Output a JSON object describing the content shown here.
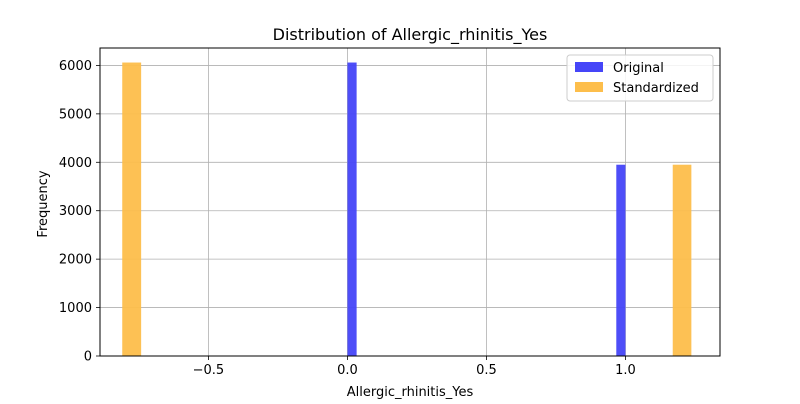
{
  "chart_data": {
    "type": "bar",
    "title": "Distribution of Allergic_rhinitis_Yes",
    "xlabel": "Allergic_rhinitis_Yes",
    "ylabel": "Frequency",
    "xlim": [
      -0.89,
      1.34
    ],
    "ylim": [
      0,
      6360
    ],
    "x_ticks": [
      -0.5,
      0.0,
      0.5,
      1.0
    ],
    "x_tick_labels": [
      "−0.5",
      "0.0",
      "0.5",
      "1.0"
    ],
    "y_ticks": [
      0,
      1000,
      2000,
      3000,
      4000,
      5000,
      6000
    ],
    "y_tick_labels": [
      "0",
      "1000",
      "2000",
      "3000",
      "4000",
      "5000",
      "6000"
    ],
    "grid": true,
    "legend_position": "top-right",
    "series": [
      {
        "name": "Original",
        "color": "#4545f8",
        "bars": [
          {
            "x0": 0.0,
            "x1": 0.033,
            "value": 6060
          },
          {
            "x0": 0.967,
            "x1": 1.0,
            "value": 3950
          }
        ]
      },
      {
        "name": "Standardized",
        "color": "#fdbe4b",
        "bars": [
          {
            "x0": -0.81,
            "x1": -0.742,
            "value": 6060
          },
          {
            "x0": 1.17,
            "x1": 1.237,
            "value": 3950
          }
        ]
      }
    ]
  }
}
